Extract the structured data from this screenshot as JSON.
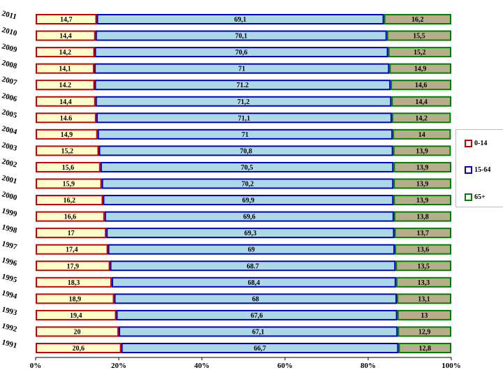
{
  "chart_data": {
    "type": "bar",
    "stacked": true,
    "orientation": "horizontal",
    "categories": [
      "2011",
      "2010",
      "2009",
      "2008",
      "2007",
      "2006",
      "2005",
      "2004",
      "2003",
      "2002",
      "2001",
      "2000",
      "1999",
      "1998",
      "1997",
      "1996",
      "1995",
      "1994",
      "1993",
      "1992",
      "1991"
    ],
    "series": [
      {
        "name": "0-14",
        "color": "#ffffcc",
        "border": "#cc0000",
        "values": [
          14.7,
          14.4,
          14.2,
          14.1,
          14.2,
          14.4,
          14.6,
          14.9,
          15.2,
          15.6,
          15.9,
          16.2,
          16.6,
          17,
          17.4,
          17.9,
          18.3,
          18.9,
          19.4,
          20,
          20.6
        ],
        "labels": [
          "14,7",
          "14,4",
          "14,2",
          "14,1",
          "14.2",
          "14,4",
          "14.6",
          "14,9",
          "15,2",
          "15,6",
          "15,9",
          "16,2",
          "16,6",
          "17",
          "17,4",
          "17,9",
          "18,3",
          "18,9",
          "19,4",
          "20",
          "20,6"
        ]
      },
      {
        "name": "15-64",
        "color": "#add8e6",
        "border": "#0000cc",
        "values": [
          69.1,
          70.1,
          70.6,
          71,
          71.2,
          71.2,
          71.1,
          71,
          70.8,
          70.5,
          70.2,
          69.9,
          69.6,
          69.3,
          69,
          68.7,
          68.4,
          68,
          67.6,
          67.1,
          66.7
        ],
        "labels": [
          "69,1",
          "70,1",
          "70,6",
          "71",
          "71.2",
          "71,2",
          "71,1",
          "71",
          "70,8",
          "70,5",
          "70,2",
          "69,9",
          "69,6",
          "69,3",
          "69",
          "68.7",
          "68,4",
          "68",
          "67,6",
          "67,1",
          "66,7"
        ]
      },
      {
        "name": "65+",
        "color": "#b8ad8a",
        "border": "#008000",
        "values": [
          16.2,
          15.5,
          15.2,
          14.9,
          14.6,
          14.4,
          14.2,
          14,
          13.9,
          13.9,
          13.9,
          13.9,
          13.8,
          13.7,
          13.6,
          13.5,
          13.3,
          13.1,
          13,
          12.9,
          12.8
        ],
        "labels": [
          "16,2",
          "15,5",
          "15,2",
          "14,9",
          "14,6",
          "14,4",
          "14,2",
          "14",
          "13,9",
          "13,9",
          "13,9",
          "13,9",
          "13,8",
          "13,7",
          "13,6",
          "13,5",
          "13,3",
          "13,1",
          "13",
          "12,9",
          "12,8"
        ]
      }
    ],
    "xticks": [
      "0%",
      "20%",
      "40%",
      "60%",
      "80%",
      "100%"
    ],
    "xlim": [
      0,
      100
    ],
    "legend_position": "right",
    "grid": false
  }
}
